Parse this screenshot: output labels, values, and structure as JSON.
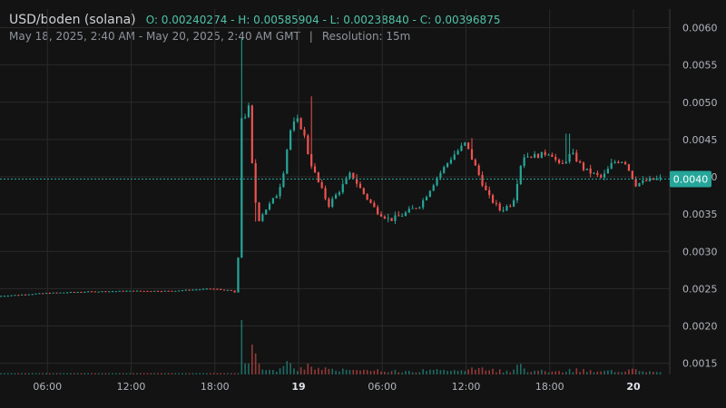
{
  "header": {
    "pair": "USD/boden (solana)",
    "ohlc": "O: 0.00240274 - H: 0.00585904 - L: 0.00238840 - C: 0.00396875",
    "range": "May 18, 2025, 2:40 AM - May 20, 2025, 2:40 AM GMT",
    "separator": "|",
    "resolution": "Resolution: 15m"
  },
  "colors": {
    "background": "#131313",
    "grid": "#2a2a2a",
    "up": "#26a69a",
    "down": "#ef5350",
    "price_badge": "#26a69a",
    "axis_text": "#b2b5be"
  },
  "chart_data": {
    "type": "candlestick",
    "y_axis": {
      "position": "right",
      "ticks": [
        "0.0060",
        "0.0055",
        "0.0050",
        "0.0045",
        "0.0040",
        "0.0035",
        "0.0030",
        "0.0025",
        "0.0020",
        "0.0015"
      ],
      "ylim": [
        0.00135,
        0.00625
      ]
    },
    "x_axis": {
      "ticks": [
        {
          "label": "06:00",
          "h": 6,
          "bold": false
        },
        {
          "label": "12:00",
          "h": 12,
          "bold": false
        },
        {
          "label": "18:00",
          "h": 18,
          "bold": false
        },
        {
          "label": "19",
          "h": 24,
          "bold": true
        },
        {
          "label": "06:00",
          "h": 30,
          "bold": false
        },
        {
          "label": "12:00",
          "h": 36,
          "bold": false
        },
        {
          "label": "18:00",
          "h": 42,
          "bold": false
        },
        {
          "label": "20",
          "h": 48,
          "bold": true
        }
      ],
      "xlim_hours": [
        2.6,
        50.6
      ]
    },
    "last_price": "0.0040",
    "last_price_value": 0.00397,
    "price_path": [
      [
        2.67,
        0.0024
      ],
      [
        6,
        0.00244
      ],
      [
        9,
        0.00246
      ],
      [
        12,
        0.00247
      ],
      [
        15,
        0.00247
      ],
      [
        18,
        0.0025
      ],
      [
        19.6,
        0.00247
      ],
      [
        19.9,
        0.00238
      ],
      [
        20.0,
        0.00505
      ],
      [
        20.3,
        0.0046
      ],
      [
        20.6,
        0.00515
      ],
      [
        20.9,
        0.0042
      ],
      [
        21.3,
        0.0034
      ],
      [
        21.8,
        0.00355
      ],
      [
        22.3,
        0.00365
      ],
      [
        22.8,
        0.0038
      ],
      [
        23.2,
        0.0041
      ],
      [
        23.6,
        0.0046
      ],
      [
        24.1,
        0.00478
      ],
      [
        24.6,
        0.0046
      ],
      [
        25.0,
        0.00425
      ],
      [
        25.6,
        0.00395
      ],
      [
        26.4,
        0.00362
      ],
      [
        27.3,
        0.00385
      ],
      [
        28.0,
        0.00405
      ],
      [
        28.8,
        0.0038
      ],
      [
        29.8,
        0.00355
      ],
      [
        30.8,
        0.00342
      ],
      [
        31.8,
        0.0035
      ],
      [
        33.0,
        0.00363
      ],
      [
        34.2,
        0.004
      ],
      [
        35.3,
        0.00428
      ],
      [
        36.2,
        0.00445
      ],
      [
        37.0,
        0.0041
      ],
      [
        37.8,
        0.00375
      ],
      [
        38.7,
        0.00355
      ],
      [
        39.6,
        0.00365
      ],
      [
        40.3,
        0.00428
      ],
      [
        41.3,
        0.00428
      ],
      [
        42.3,
        0.00433
      ],
      [
        43.0,
        0.00413
      ],
      [
        43.8,
        0.00432
      ],
      [
        44.7,
        0.0041
      ],
      [
        46.0,
        0.00398
      ],
      [
        46.8,
        0.0042
      ],
      [
        47.6,
        0.00422
      ],
      [
        48.4,
        0.0039
      ],
      [
        49.3,
        0.00395
      ],
      [
        50.0,
        0.00397
      ]
    ],
    "annotations": [
      {
        "h": 20.0,
        "high": 0.00585904
      },
      {
        "h": 20.9,
        "low": 0.0034
      },
      {
        "h": 25.0,
        "high": 0.00508
      },
      {
        "h": 36.5,
        "high": 0.00452
      },
      {
        "h": 43.3,
        "high": 0.00458
      }
    ]
  }
}
